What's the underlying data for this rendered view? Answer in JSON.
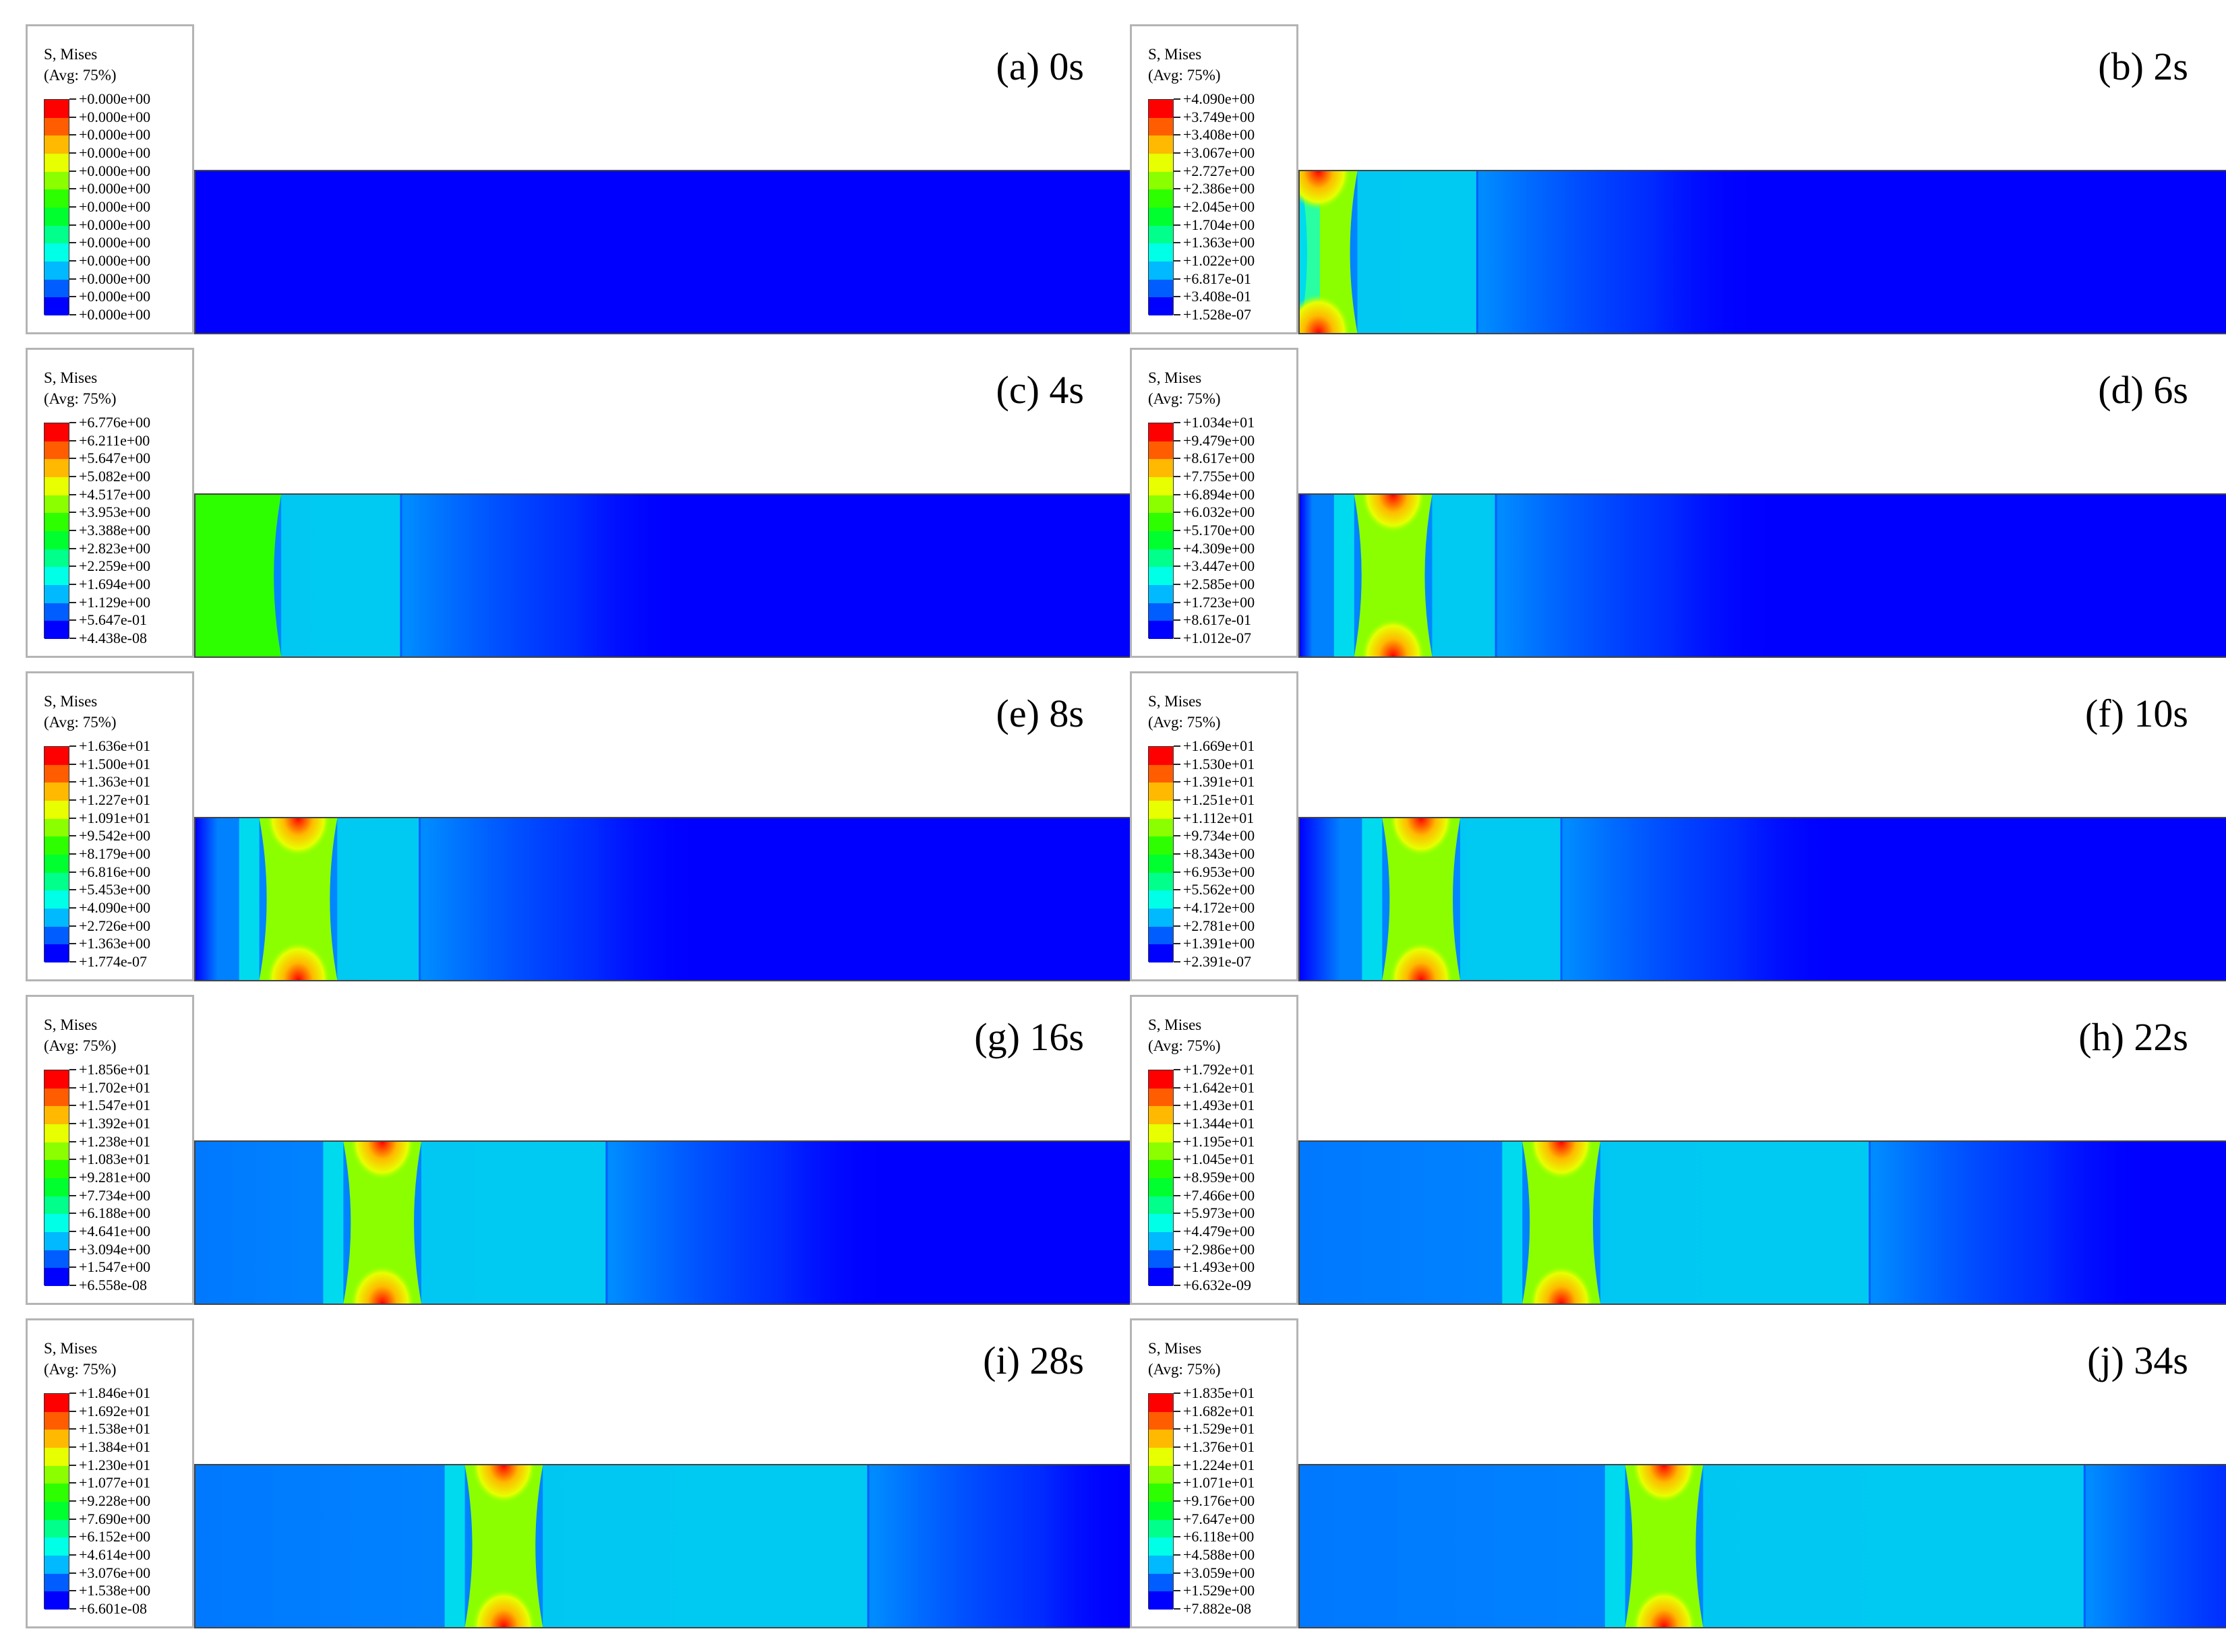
{
  "figure": {
    "background": "#ffffff",
    "colormap": [
      "#0000ff",
      "#005dff",
      "#00b9ff",
      "#00ffe7",
      "#00ff8b",
      "#00ff2e",
      "#2eff00",
      "#8bff00",
      "#e7ff00",
      "#ffb900",
      "#ff5d00",
      "#ff0000"
    ],
    "legend_title": "S, Mises",
    "legend_subtitle": "(Avg: 75%)",
    "panels": [
      {
        "label": "(a) 0s",
        "ticks": [
          "+0.000e+00",
          "+0.000e+00",
          "+0.000e+00",
          "+0.000e+00",
          "+0.000e+00",
          "+0.000e+00",
          "+0.000e+00",
          "+0.000e+00",
          "+0.000e+00",
          "+0.000e+00",
          "+0.000e+00",
          "+0.000e+00",
          "+0.000e+00"
        ]
      },
      {
        "label": "(b) 2s",
        "ticks": [
          "+4.090e+00",
          "+3.749e+00",
          "+3.408e+00",
          "+3.067e+00",
          "+2.727e+00",
          "+2.386e+00",
          "+2.045e+00",
          "+1.704e+00",
          "+1.363e+00",
          "+1.022e+00",
          "+6.817e-01",
          "+3.408e-01",
          "+1.528e-07"
        ]
      },
      {
        "label": "(c) 4s",
        "ticks": [
          "+6.776e+00",
          "+6.211e+00",
          "+5.647e+00",
          "+5.082e+00",
          "+4.517e+00",
          "+3.953e+00",
          "+3.388e+00",
          "+2.823e+00",
          "+2.259e+00",
          "+1.694e+00",
          "+1.129e+00",
          "+5.647e-01",
          "+4.438e-08"
        ]
      },
      {
        "label": "(d) 6s",
        "ticks": [
          "+1.034e+01",
          "+9.479e+00",
          "+8.617e+00",
          "+7.755e+00",
          "+6.894e+00",
          "+6.032e+00",
          "+5.170e+00",
          "+4.309e+00",
          "+3.447e+00",
          "+2.585e+00",
          "+1.723e+00",
          "+8.617e-01",
          "+1.012e-07"
        ]
      },
      {
        "label": "(e) 8s",
        "ticks": [
          "+1.636e+01",
          "+1.500e+01",
          "+1.363e+01",
          "+1.227e+01",
          "+1.091e+01",
          "+9.542e+00",
          "+8.179e+00",
          "+6.816e+00",
          "+5.453e+00",
          "+4.090e+00",
          "+2.726e+00",
          "+1.363e+00",
          "+1.774e-07"
        ]
      },
      {
        "label": "(f) 10s",
        "ticks": [
          "+1.669e+01",
          "+1.530e+01",
          "+1.391e+01",
          "+1.251e+01",
          "+1.112e+01",
          "+9.734e+00",
          "+8.343e+00",
          "+6.953e+00",
          "+5.562e+00",
          "+4.172e+00",
          "+2.781e+00",
          "+1.391e+00",
          "+2.391e-07"
        ]
      },
      {
        "label": "(g) 16s",
        "ticks": [
          "+1.856e+01",
          "+1.702e+01",
          "+1.547e+01",
          "+1.392e+01",
          "+1.238e+01",
          "+1.083e+01",
          "+9.281e+00",
          "+7.734e+00",
          "+6.188e+00",
          "+4.641e+00",
          "+3.094e+00",
          "+1.547e+00",
          "+6.558e-08"
        ]
      },
      {
        "label": "(h) 22s",
        "ticks": [
          "+1.792e+01",
          "+1.642e+01",
          "+1.493e+01",
          "+1.344e+01",
          "+1.195e+01",
          "+1.045e+01",
          "+8.959e+00",
          "+7.466e+00",
          "+5.973e+00",
          "+4.479e+00",
          "+2.986e+00",
          "+1.493e+00",
          "+6.632e-09"
        ]
      },
      {
        "label": "(i) 28s",
        "ticks": [
          "+1.846e+01",
          "+1.692e+01",
          "+1.538e+01",
          "+1.384e+01",
          "+1.230e+01",
          "+1.077e+01",
          "+9.228e+00",
          "+7.690e+00",
          "+6.152e+00",
          "+4.614e+00",
          "+3.076e+00",
          "+1.538e+00",
          "+6.601e-08"
        ]
      },
      {
        "label": "(j) 34s",
        "ticks": [
          "+1.835e+01",
          "+1.682e+01",
          "+1.529e+01",
          "+1.376e+01",
          "+1.224e+01",
          "+1.071e+01",
          "+9.176e+00",
          "+7.647e+00",
          "+6.118e+00",
          "+4.588e+00",
          "+3.059e+00",
          "+1.529e+00",
          "+7.882e-08"
        ]
      }
    ]
  }
}
